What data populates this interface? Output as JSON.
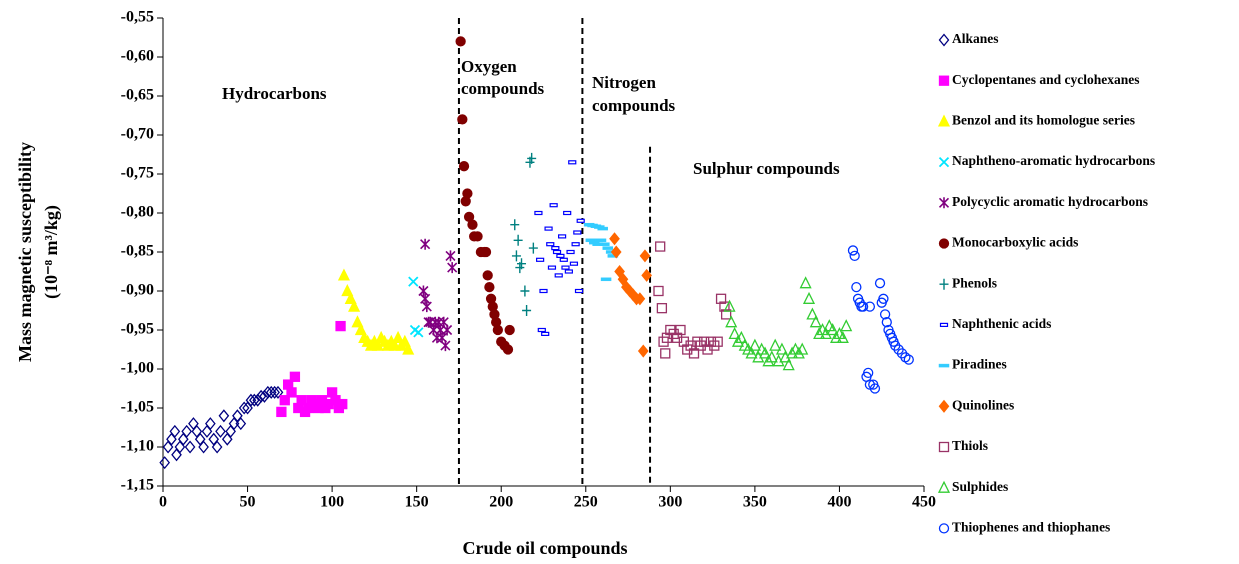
{
  "chart_data": {
    "type": "scatter",
    "y_title": "Mass magnetic susceptibility",
    "y_title_unit": "(10⁻⁸ m³/kg)",
    "x_title": "Crude oil compounds",
    "xlim": [
      0,
      450
    ],
    "xticks": [
      0,
      50,
      100,
      150,
      200,
      250,
      300,
      350,
      400,
      450
    ],
    "ylim": [
      -1.15,
      -0.55
    ],
    "yticks": [
      {
        "value": -1.15,
        "label": "-1,15"
      },
      {
        "value": -1.1,
        "label": "-1,10"
      },
      {
        "value": -1.05,
        "label": "-1,05"
      },
      {
        "value": -1.0,
        "label": "-1,00"
      },
      {
        "value": -0.95,
        "label": "-0,95"
      },
      {
        "value": -0.9,
        "label": "-0,90"
      },
      {
        "value": -0.85,
        "label": "-0,85"
      },
      {
        "value": -0.8,
        "label": "-0,80"
      },
      {
        "value": -0.75,
        "label": "-0,75"
      },
      {
        "value": -0.7,
        "label": "-0,70"
      },
      {
        "value": -0.65,
        "label": "-0,65"
      },
      {
        "value": -0.6,
        "label": "-0,60"
      },
      {
        "value": -0.55,
        "label": "-0,55"
      }
    ],
    "grid": false,
    "legend_position": "right",
    "annotations": [
      "Hydrocarbons",
      "Oxygen",
      "compounds",
      "Nitrogen",
      "compounds",
      "Sulphur compounds"
    ],
    "dividers": [
      {
        "x": 175,
        "y_top": -0.55
      },
      {
        "x": 248,
        "y_top": -0.55
      },
      {
        "x": 288,
        "y_top": -0.715
      }
    ],
    "series": [
      {
        "name": "Alkanes",
        "color": "#000080",
        "marker": "diamond-open",
        "x": [
          1,
          3,
          5,
          7,
          8,
          10,
          12,
          14,
          16,
          18,
          20,
          22,
          24,
          26,
          28,
          30,
          32,
          34,
          36,
          38,
          40,
          42,
          44,
          46,
          48,
          50,
          52,
          54,
          56,
          58,
          60,
          62,
          64,
          66,
          68
        ],
        "values": [
          -1.12,
          -1.1,
          -1.09,
          -1.08,
          -1.11,
          -1.1,
          -1.09,
          -1.08,
          -1.1,
          -1.07,
          -1.08,
          -1.09,
          -1.1,
          -1.08,
          -1.07,
          -1.09,
          -1.1,
          -1.08,
          -1.06,
          -1.09,
          -1.08,
          -1.07,
          -1.06,
          -1.07,
          -1.05,
          -1.05,
          -1.04,
          -1.04,
          -1.04,
          -1.035,
          -1.035,
          -1.03,
          -1.03,
          -1.03,
          -1.03
        ]
      },
      {
        "name": "Cyclopentanes and cyclohexanes",
        "color": "#ff00ff",
        "marker": "square",
        "x": [
          70,
          72,
          74,
          76,
          78,
          80,
          82,
          84,
          86,
          88,
          90,
          92,
          94,
          96,
          98,
          100,
          102,
          104,
          106,
          105
        ],
        "values": [
          -1.055,
          -1.04,
          -1.02,
          -1.03,
          -1.01,
          -1.05,
          -1.04,
          -1.055,
          -1.05,
          -1.04,
          -1.045,
          -1.05,
          -1.04,
          -1.05,
          -1.045,
          -1.03,
          -1.04,
          -1.05,
          -1.045,
          -0.945
        ]
      },
      {
        "name": "Benzol and its homologue series",
        "color": "#ffff00",
        "marker": "triangle",
        "x": [
          107,
          109,
          111,
          113,
          115,
          117,
          119,
          121,
          123,
          125,
          127,
          129,
          131,
          133,
          135,
          137,
          139,
          141,
          143,
          145
        ],
        "values": [
          -0.88,
          -0.9,
          -0.91,
          -0.92,
          -0.94,
          -0.95,
          -0.96,
          -0.965,
          -0.97,
          -0.965,
          -0.97,
          -0.96,
          -0.965,
          -0.97,
          -0.965,
          -0.97,
          -0.96,
          -0.97,
          -0.965,
          -0.975
        ]
      },
      {
        "name": "Naphtheno-aromatic hydrocarbons",
        "color": "#00e5ff",
        "marker": "cross",
        "x": [
          148,
          149,
          151
        ],
        "values": [
          -0.888,
          -0.95,
          -0.953
        ]
      },
      {
        "name": "Polycyclic aromatic hydrocarbons",
        "color": "#800080",
        "marker": "star",
        "x": [
          155,
          154,
          155,
          156,
          157,
          158,
          160,
          161,
          162,
          163,
          164,
          165,
          166,
          167,
          168,
          170,
          171
        ],
        "values": [
          -0.84,
          -0.9,
          -0.91,
          -0.92,
          -0.94,
          -0.94,
          -0.95,
          -0.94,
          -0.96,
          -0.94,
          -0.95,
          -0.96,
          -0.94,
          -0.97,
          -0.95,
          -0.855,
          -0.87
        ]
      },
      {
        "name": "Monocarboxylic acids",
        "color": "#800000",
        "marker": "circle",
        "x": [
          176,
          177,
          178,
          179,
          180,
          181,
          183,
          184,
          186,
          188,
          190,
          191,
          192,
          193,
          194,
          195,
          196,
          197,
          198,
          200,
          202,
          204,
          205
        ],
        "values": [
          -0.58,
          -0.68,
          -0.74,
          -0.785,
          -0.775,
          -0.805,
          -0.815,
          -0.83,
          -0.83,
          -0.85,
          -0.85,
          -0.85,
          -0.88,
          -0.895,
          -0.91,
          -0.92,
          -0.93,
          -0.94,
          -0.95,
          -0.965,
          -0.97,
          -0.975,
          -0.95
        ]
      },
      {
        "name": "Phenols",
        "color": "#008080",
        "marker": "plus",
        "x": [
          208,
          209,
          210,
          211,
          212,
          214,
          215,
          217,
          218,
          219
        ],
        "values": [
          -0.815,
          -0.855,
          -0.835,
          -0.87,
          -0.865,
          -0.9,
          -0.925,
          -0.735,
          -0.73,
          -0.845
        ]
      },
      {
        "name": "Naphthenic acids",
        "color": "#0000ff",
        "marker": "dash",
        "x": [
          222,
          223,
          224,
          225,
          226,
          228,
          229,
          230,
          231,
          232,
          233,
          234,
          235,
          236,
          237,
          238,
          239,
          240,
          241,
          242,
          243,
          244,
          245,
          246,
          247
        ],
        "values": [
          -0.8,
          -0.86,
          -0.95,
          -0.9,
          -0.955,
          -0.82,
          -0.84,
          -0.87,
          -0.79,
          -0.845,
          -0.85,
          -0.88,
          -0.855,
          -0.83,
          -0.86,
          -0.87,
          -0.8,
          -0.875,
          -0.85,
          -0.735,
          -0.865,
          -0.84,
          -0.825,
          -0.9,
          -0.81
        ]
      },
      {
        "name": "Piradines",
        "color": "#33ccff",
        "marker": "bar",
        "x": [
          252,
          254,
          256,
          258,
          260,
          253,
          255,
          257,
          259,
          261,
          263,
          265,
          262,
          266
        ],
        "values": [
          -0.815,
          -0.816,
          -0.817,
          -0.818,
          -0.82,
          -0.835,
          -0.838,
          -0.84,
          -0.835,
          -0.84,
          -0.845,
          -0.85,
          -0.885,
          -0.855
        ]
      },
      {
        "name": "Quinolines",
        "color": "#ff6600",
        "marker": "diamond",
        "x": [
          267,
          268,
          270,
          272,
          274,
          276,
          278,
          280,
          282,
          285,
          286,
          284
        ],
        "values": [
          -0.833,
          -0.85,
          -0.875,
          -0.885,
          -0.895,
          -0.9,
          -0.905,
          -0.91,
          -0.91,
          -0.855,
          -0.88,
          -0.977
        ]
      },
      {
        "name": "Thiols",
        "color": "#993366",
        "marker": "square-open",
        "x": [
          294,
          293,
          295,
          296,
          297,
          298,
          300,
          302,
          304,
          306,
          308,
          310,
          312,
          314,
          316,
          318,
          320,
          322,
          324,
          326,
          328,
          330,
          332,
          333
        ],
        "values": [
          -0.843,
          -0.9,
          -0.922,
          -0.965,
          -0.98,
          -0.96,
          -0.95,
          -0.955,
          -0.96,
          -0.95,
          -0.965,
          -0.975,
          -0.97,
          -0.98,
          -0.965,
          -0.97,
          -0.965,
          -0.975,
          -0.965,
          -0.97,
          -0.965,
          -0.91,
          -0.92,
          -0.93
        ]
      },
      {
        "name": "Sulphides",
        "color": "#33cc33",
        "marker": "triangle-open",
        "x": [
          335,
          336,
          338,
          340,
          342,
          344,
          346,
          348,
          350,
          352,
          354,
          356,
          358,
          360,
          362,
          364,
          366,
          368,
          370,
          372,
          374,
          376,
          378,
          380,
          382,
          384,
          386,
          388,
          390,
          392,
          394,
          396,
          398,
          400,
          402,
          404
        ],
        "values": [
          -0.92,
          -0.94,
          -0.955,
          -0.965,
          -0.96,
          -0.97,
          -0.975,
          -0.98,
          -0.97,
          -0.985,
          -0.975,
          -0.98,
          -0.99,
          -0.985,
          -0.97,
          -0.99,
          -0.975,
          -0.985,
          -0.995,
          -0.98,
          -0.975,
          -0.98,
          -0.975,
          -0.89,
          -0.91,
          -0.93,
          -0.94,
          -0.955,
          -0.95,
          -0.955,
          -0.945,
          -0.95,
          -0.96,
          -0.955,
          -0.96,
          -0.945
        ]
      },
      {
        "name": "Thiophenes and thiophanes",
        "color": "#0033ff",
        "marker": "circle-open",
        "x": [
          408,
          409,
          410,
          411,
          412,
          413,
          414,
          416,
          417,
          418,
          420,
          421,
          424,
          425,
          426,
          427,
          428,
          429,
          430,
          431,
          432,
          433,
          435,
          437,
          439,
          441,
          418
        ],
        "values": [
          -0.848,
          -0.855,
          -0.895,
          -0.91,
          -0.915,
          -0.92,
          -0.92,
          -1.01,
          -1.005,
          -1.02,
          -1.02,
          -1.025,
          -0.89,
          -0.915,
          -0.91,
          -0.93,
          -0.94,
          -0.95,
          -0.955,
          -0.96,
          -0.965,
          -0.97,
          -0.975,
          -0.98,
          -0.985,
          -0.988,
          -0.92
        ]
      }
    ]
  }
}
